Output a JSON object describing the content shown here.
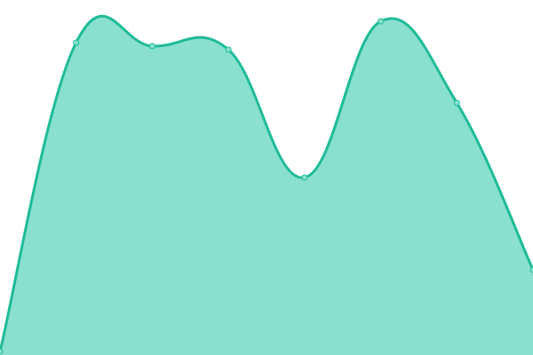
{
  "chart_data": {
    "type": "area",
    "title": "",
    "xlabel": "",
    "ylabel": "",
    "x": [
      0,
      1,
      2,
      3,
      4,
      5,
      6,
      7
    ],
    "values": [
      1,
      88,
      87,
      86,
      50,
      94,
      71,
      24
    ],
    "ylim": [
      0,
      100
    ],
    "grid": false,
    "axes_visible": false,
    "curve": "smooth",
    "colors": {
      "line": "#1fbb98",
      "fill": "#89e0cf",
      "marker_fill": "#89e0cf",
      "marker_stroke": "#1fbb98"
    }
  }
}
